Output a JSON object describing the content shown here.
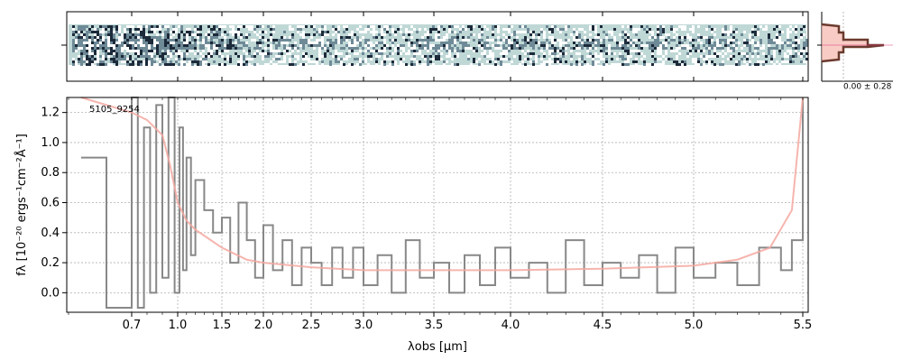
{
  "chart_data": [
    {
      "type": "heatmap",
      "panel": "2d-spectrum",
      "colormap": [
        "#ffffff",
        "#c9dcdc",
        "#6f8a97",
        "#1c2a3a"
      ],
      "background_band_color": "#bfd8d6",
      "x_axis": "wavelength",
      "xlim": [
        0.6,
        5.52
      ]
    },
    {
      "type": "histogram",
      "panel": "pixel-distribution",
      "annotation": "0.00 ± 0.28",
      "step_color": "#6b3a2e",
      "fill_color": "#f5b7ad"
    },
    {
      "type": "line",
      "panel": "1d-spectrum",
      "annotation": "5105_9254",
      "xlabel": "λobs [μm]",
      "ylabel": "fλ [10⁻²⁰ ergs⁻¹cm⁻²Å⁻¹]",
      "ylim": [
        -0.13,
        1.3
      ],
      "xlim": [
        0.6,
        5.52
      ],
      "x_scale": "stretched (steeper below 1 μm)",
      "x_ticks": [
        "0.7",
        "1.0",
        "1.5",
        "2.0",
        "2.5",
        "3.0",
        "3.5",
        "4.0",
        "4.5",
        "5.0",
        "5.5"
      ],
      "y_ticks": [
        "0.0",
        "0.2",
        "0.4",
        "0.6",
        "0.8",
        "1.0",
        "1.2"
      ],
      "grid": true,
      "series": [
        {
          "role": "flux",
          "color": "#888888",
          "x": [
            0.62,
            0.66,
            0.7,
            0.74,
            0.78,
            0.82,
            0.86,
            0.9,
            0.94,
            0.98,
            1.02,
            1.06,
            1.1,
            1.15,
            1.2,
            1.3,
            1.4,
            1.5,
            1.6,
            1.7,
            1.8,
            1.9,
            2.0,
            2.1,
            2.2,
            2.3,
            2.4,
            2.5,
            2.6,
            2.7,
            2.8,
            2.9,
            3.0,
            3.1,
            3.2,
            3.3,
            3.4,
            3.5,
            3.6,
            3.7,
            3.8,
            3.9,
            4.0,
            4.1,
            4.2,
            4.3,
            4.4,
            4.5,
            4.6,
            4.7,
            4.8,
            4.9,
            5.0,
            5.1,
            5.2,
            5.3,
            5.4,
            5.45,
            5.5
          ],
          "y": [
            0.9,
            -0.1,
            1.3,
            -0.1,
            1.1,
            0.0,
            1.25,
            0.1,
            1.3,
            0.0,
            1.1,
            0.15,
            0.9,
            0.25,
            0.75,
            0.55,
            0.4,
            0.5,
            0.2,
            0.6,
            0.35,
            0.1,
            0.45,
            0.15,
            0.35,
            0.05,
            0.3,
            0.2,
            0.05,
            0.3,
            0.1,
            0.3,
            0.05,
            0.25,
            0.0,
            0.35,
            0.1,
            0.2,
            0.0,
            0.25,
            0.05,
            0.3,
            0.1,
            0.2,
            0.0,
            0.35,
            0.05,
            0.2,
            0.1,
            0.25,
            0.0,
            0.3,
            0.1,
            0.2,
            0.05,
            0.3,
            0.15,
            0.35,
            1.3
          ]
        },
        {
          "role": "model",
          "color": "#f5a8a0",
          "x": [
            0.62,
            0.7,
            0.8,
            0.9,
            0.95,
            1.0,
            1.1,
            1.2,
            1.3,
            1.5,
            1.8,
            2.0,
            2.5,
            3.0,
            3.5,
            4.0,
            4.5,
            5.0,
            5.2,
            5.35,
            5.45,
            5.5
          ],
          "y": [
            1.3,
            1.2,
            1.15,
            1.05,
            0.85,
            0.6,
            0.48,
            0.42,
            0.38,
            0.3,
            0.22,
            0.2,
            0.17,
            0.15,
            0.15,
            0.15,
            0.16,
            0.18,
            0.22,
            0.3,
            0.55,
            1.3
          ]
        }
      ]
    }
  ]
}
